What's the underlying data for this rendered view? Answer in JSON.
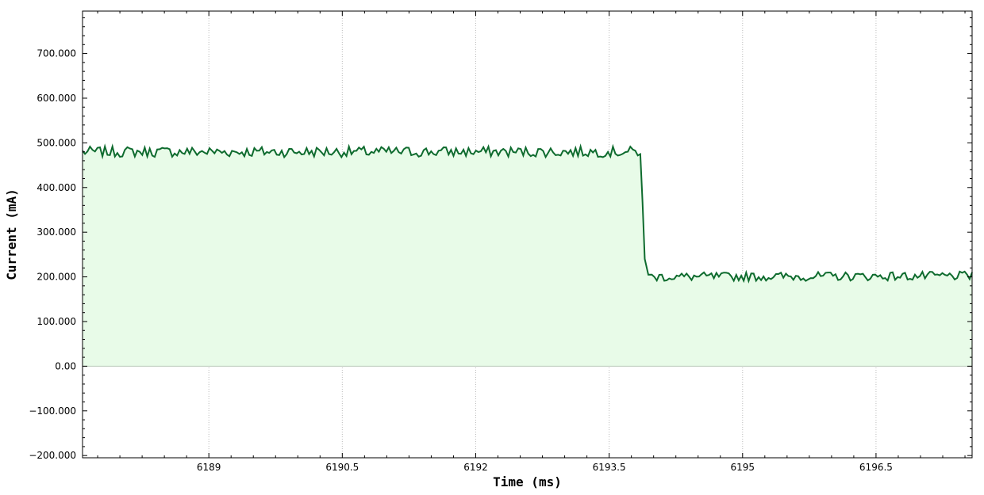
{
  "chart_data": {
    "type": "area",
    "title": "",
    "xlabel": "Time (ms)",
    "ylabel": "Current (mA)",
    "xlim": [
      6187.58,
      6197.58
    ],
    "ylim": [
      -205,
      795
    ],
    "xticks": [
      6189,
      6190.5,
      6192,
      6193.5,
      6195,
      6196.5
    ],
    "xtick_labels": [
      "6189",
      "6190.5",
      "6192",
      "6193.5",
      "6195",
      "6196.5"
    ],
    "yticks": [
      700,
      600,
      500,
      400,
      300,
      200,
      100,
      0,
      -100,
      -200
    ],
    "ytick_labels": [
      "700.000",
      "600.000",
      "500.000",
      "400.000",
      "300.000",
      "200.000",
      "100.000",
      "0.00",
      "−100.000",
      "−200.000"
    ],
    "grid": {
      "x": true,
      "y": false
    },
    "line_color": "#0e6b2e",
    "fill_color": "#e8fbe8",
    "series": [
      {
        "x": [
          6187.58,
          6193.85,
          6193.9,
          6193.94,
          6193.98,
          6197.58
        ],
        "y": [
          480,
          480,
          240,
          205,
          200,
          202
        ],
        "noise": [
          12,
          12,
          0,
          0,
          10,
          10
        ]
      }
    ]
  }
}
